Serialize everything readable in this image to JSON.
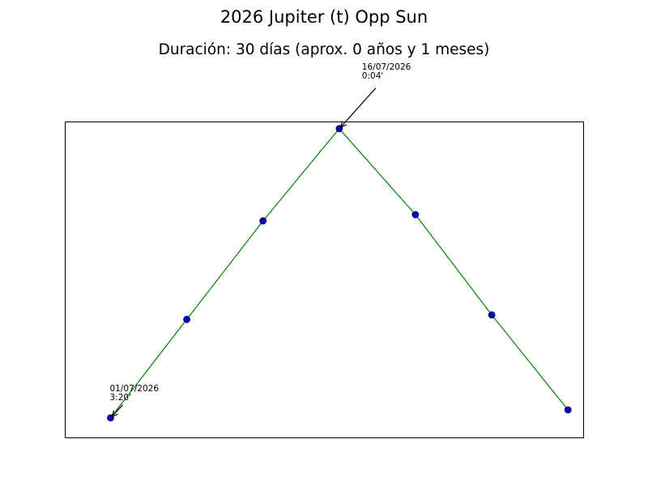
{
  "title": "2026 Jupiter (t) Opp Sun",
  "subtitle": "Duración: 30 días (aprox. 0 años y 1 meses)",
  "chart_data": {
    "type": "line",
    "x_unit": "date",
    "x": [
      "2026-07-01",
      "2026-07-06",
      "2026-07-11",
      "2026-07-16",
      "2026-07-21",
      "2026-07-26",
      "2026-07-31"
    ],
    "y_description": "orb (degrees of arc)",
    "y": [
      3.33,
      2.22,
      1.11,
      0.07,
      1.04,
      2.17,
      3.24
    ],
    "ylim_inverted": true,
    "xlim": [
      "2026-06-28",
      "2026-08-01"
    ],
    "ylim": [
      3.55,
      -0.01
    ],
    "axes_visible": false,
    "grid": false,
    "line_color": "#008000",
    "marker_face_color": "#0000cc",
    "marker_edge_color": "#000033",
    "annotations": [
      {
        "x": "2026-07-01",
        "y": 3.33,
        "date": "01/07/2026",
        "value": "3:20'"
      },
      {
        "x": "2026-07-16",
        "y": 0.07,
        "date": "16/07/2026",
        "value": "0:04'"
      }
    ]
  }
}
